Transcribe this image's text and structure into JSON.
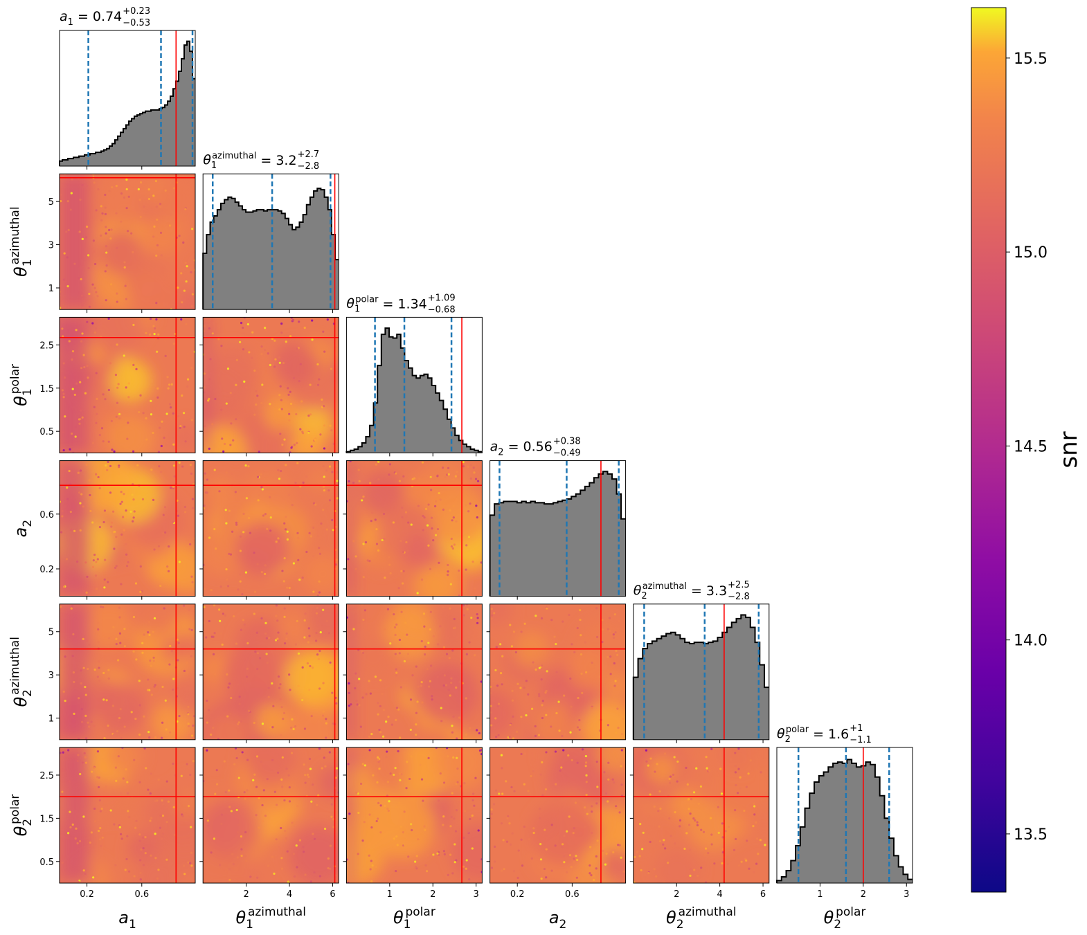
{
  "chart_data": {
    "type": "scatter",
    "layout": "corner",
    "params": [
      {
        "id": "a1",
        "symbol": "a",
        "sub": "1",
        "sup": "",
        "range": [
          0.0,
          0.99
        ],
        "ticks": [
          0.2,
          0.6
        ],
        "tick_labels": [
          "0.2",
          "0.6"
        ],
        "summary": {
          "median": "0.74",
          "plus": "+0.23",
          "minus": "−0.53"
        },
        "quantiles": [
          0.21,
          0.74,
          0.97
        ],
        "truth": 0.85
      },
      {
        "id": "theta1_az",
        "symbol": "θ",
        "sub": "1",
        "sup": "azimuthal",
        "range": [
          0.0,
          6.28
        ],
        "ticks": [
          2,
          4,
          6
        ],
        "tick_labels": [
          "2",
          "4",
          "6"
        ],
        "left_ticks": [
          1,
          3,
          5
        ],
        "left_tick_labels": [
          "1",
          "3",
          "5"
        ],
        "summary": {
          "median": "3.2",
          "plus": "+2.7",
          "minus": "−2.8"
        },
        "quantiles": [
          0.45,
          3.2,
          5.9
        ],
        "truth": 6.1
      },
      {
        "id": "theta1_pol",
        "symbol": "θ",
        "sub": "1",
        "sup": "polar",
        "range": [
          0.0,
          3.14
        ],
        "ticks": [
          1,
          2,
          3
        ],
        "tick_labels": [
          "1",
          "2",
          "3"
        ],
        "left_ticks": [
          0.5,
          1.5,
          2.5
        ],
        "left_tick_labels": [
          "0.5",
          "1.5",
          "2.5"
        ],
        "summary": {
          "median": "1.34",
          "plus": "+1.09",
          "minus": "−0.68"
        },
        "quantiles": [
          0.66,
          1.34,
          2.43
        ],
        "truth": 2.67
      },
      {
        "id": "a2",
        "symbol": "a",
        "sub": "2",
        "sup": "",
        "range": [
          0.0,
          0.99
        ],
        "ticks": [
          0.2,
          0.6
        ],
        "tick_labels": [
          "0.2",
          "0.6"
        ],
        "left_ticks": [
          0.2,
          0.6
        ],
        "left_tick_labels": [
          "0.2",
          "0.6"
        ],
        "summary": {
          "median": "0.56",
          "plus": "+0.38",
          "minus": "−0.49"
        },
        "quantiles": [
          0.07,
          0.56,
          0.94
        ],
        "truth": 0.81
      },
      {
        "id": "theta2_az",
        "symbol": "θ",
        "sub": "2",
        "sup": "azimuthal",
        "range": [
          0.0,
          6.28
        ],
        "ticks": [
          2,
          4,
          6
        ],
        "tick_labels": [
          "2",
          "4",
          "6"
        ],
        "left_ticks": [
          1,
          3,
          5
        ],
        "left_tick_labels": [
          "1",
          "3",
          "5"
        ],
        "summary": {
          "median": "3.3",
          "plus": "+2.5",
          "minus": "−2.8"
        },
        "quantiles": [
          0.5,
          3.3,
          5.8
        ],
        "truth": 4.2
      },
      {
        "id": "theta2_pol",
        "symbol": "θ",
        "sub": "2",
        "sup": "polar",
        "range": [
          0.0,
          3.14
        ],
        "ticks": [
          1,
          2,
          3
        ],
        "tick_labels": [
          "1",
          "2",
          "3"
        ],
        "left_ticks": [
          0.5,
          1.5,
          2.5
        ],
        "left_tick_labels": [
          "0.5",
          "1.5",
          "2.5"
        ],
        "summary": {
          "median": "1.6",
          "plus": "+1",
          "minus": "−1.1"
        },
        "quantiles": [
          0.5,
          1.6,
          2.6
        ],
        "truth": 2.0
      }
    ],
    "histograms": {
      "a1": [
        0.04,
        0.05,
        0.05,
        0.06,
        0.06,
        0.07,
        0.07,
        0.08,
        0.08,
        0.09,
        0.09,
        0.1,
        0.1,
        0.11,
        0.11,
        0.12,
        0.13,
        0.14,
        0.16,
        0.18,
        0.21,
        0.24,
        0.27,
        0.3,
        0.33,
        0.36,
        0.38,
        0.4,
        0.41,
        0.42,
        0.43,
        0.44,
        0.44,
        0.45,
        0.45,
        0.45,
        0.46,
        0.47,
        0.49,
        0.52,
        0.56,
        0.62,
        0.68,
        0.76,
        0.86,
        0.97,
        1.0,
        0.92,
        0.7
      ],
      "theta1_az": [
        0.45,
        0.6,
        0.7,
        0.75,
        0.8,
        0.85,
        0.88,
        0.9,
        0.89,
        0.86,
        0.83,
        0.8,
        0.78,
        0.78,
        0.79,
        0.8,
        0.8,
        0.79,
        0.8,
        0.8,
        0.8,
        0.79,
        0.77,
        0.73,
        0.68,
        0.64,
        0.66,
        0.7,
        0.76,
        0.84,
        0.9,
        0.95,
        0.97,
        0.96,
        0.9,
        0.8,
        0.6,
        0.4
      ],
      "theta1_pol": [
        0.01,
        0.02,
        0.03,
        0.05,
        0.08,
        0.13,
        0.22,
        0.4,
        0.7,
        0.95,
        1.0,
        0.93,
        0.92,
        0.95,
        0.84,
        0.74,
        0.68,
        0.62,
        0.6,
        0.62,
        0.63,
        0.6,
        0.54,
        0.48,
        0.42,
        0.35,
        0.27,
        0.2,
        0.14,
        0.1,
        0.07,
        0.05,
        0.03,
        0.02,
        0.01
      ],
      "a2": [
        0.65,
        0.74,
        0.75,
        0.76,
        0.76,
        0.76,
        0.75,
        0.76,
        0.75,
        0.76,
        0.75,
        0.75,
        0.74,
        0.74,
        0.75,
        0.76,
        0.77,
        0.78,
        0.8,
        0.82,
        0.85,
        0.88,
        0.91,
        0.95,
        0.98,
        1.0,
        0.98,
        0.94,
        0.82,
        0.62
      ],
      "theta2_az": [
        0.5,
        0.65,
        0.73,
        0.77,
        0.79,
        0.81,
        0.83,
        0.85,
        0.86,
        0.84,
        0.81,
        0.78,
        0.77,
        0.78,
        0.78,
        0.77,
        0.78,
        0.79,
        0.82,
        0.86,
        0.9,
        0.94,
        0.97,
        1.0,
        0.98,
        0.9,
        0.78,
        0.6,
        0.42
      ],
      "theta2_pol": [
        0.02,
        0.05,
        0.1,
        0.18,
        0.3,
        0.45,
        0.6,
        0.72,
        0.81,
        0.86,
        0.89,
        0.93,
        0.96,
        0.97,
        0.96,
        0.99,
        0.96,
        0.93,
        0.94,
        0.97,
        0.95,
        0.85,
        0.7,
        0.52,
        0.36,
        0.22,
        0.13,
        0.07,
        0.03
      ]
    },
    "colorbar": {
      "label": "snr",
      "min": 13.35,
      "max": 15.63,
      "ticks": [
        13.5,
        14.0,
        14.5,
        15.0,
        15.5
      ],
      "tick_labels": [
        "13.5",
        "14.0",
        "14.5",
        "15.0",
        "15.5"
      ],
      "colormap": "plasma"
    },
    "colors": {
      "histogram_fill": "#808080",
      "histogram_edge": "#000000",
      "quantile_line": "#1f77b4",
      "truth_line": "#ff0000"
    }
  }
}
